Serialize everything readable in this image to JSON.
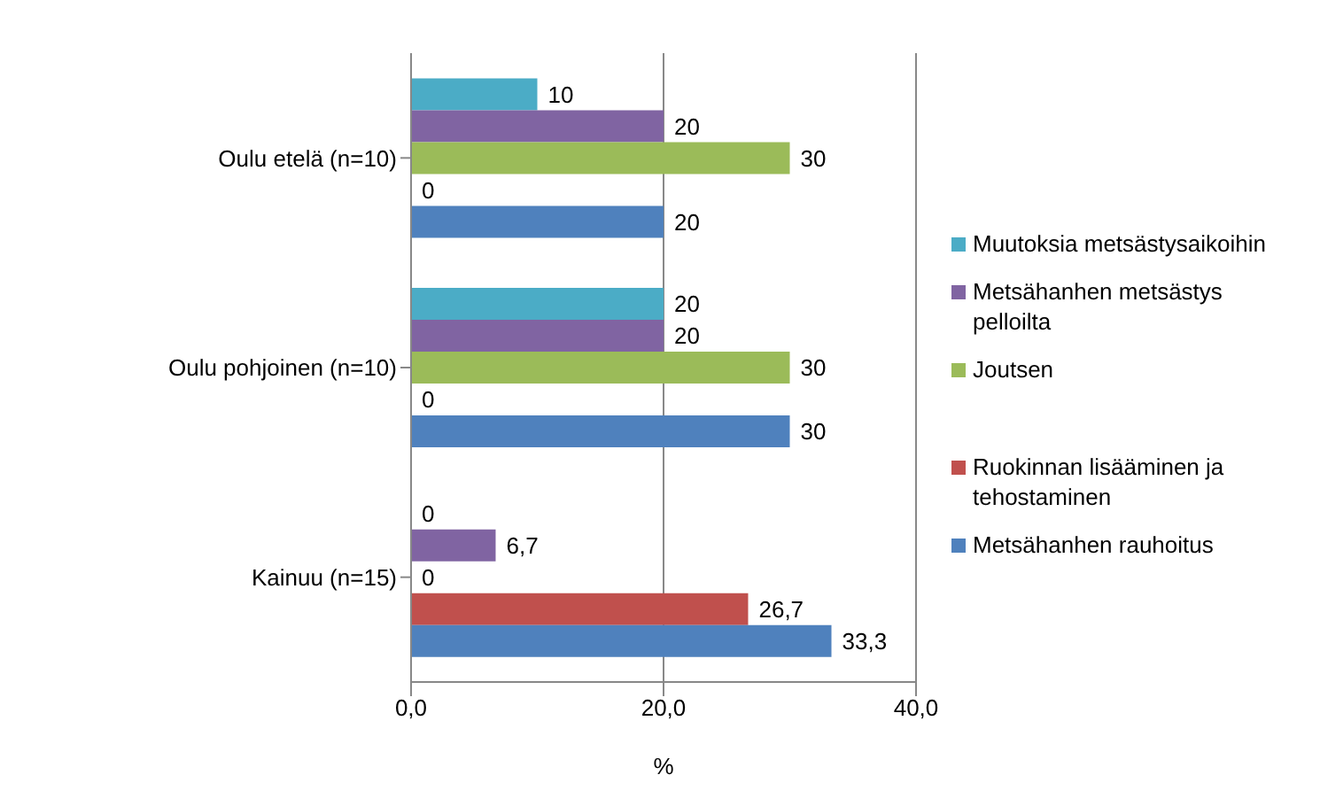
{
  "chart_data": {
    "type": "bar",
    "orientation": "horizontal",
    "xlabel": "%",
    "categories": [
      "Oulu etelä (n=10)",
      "Oulu pohjoinen (n=10)",
      "Kainuu (n=15)"
    ],
    "series": [
      {
        "name": "Muutoksia metsästysaikoihin",
        "color": "#4bacc6",
        "values": [
          10,
          20,
          0
        ],
        "value_labels": [
          "10",
          "20",
          "0"
        ]
      },
      {
        "name": "Metsähanhen metsästys pelloilta",
        "color": "#8064a2",
        "values": [
          20,
          20,
          6.7
        ],
        "value_labels": [
          "20",
          "20",
          "6,7"
        ]
      },
      {
        "name": "Joutsen",
        "color": "#9bbb59",
        "values": [
          30,
          30,
          0
        ],
        "value_labels": [
          "30",
          "30",
          "0"
        ]
      },
      {
        "name": "Ruokinnan lisääminen ja tehostaminen",
        "color": "#c0504d",
        "values": [
          0,
          0,
          26.7
        ],
        "value_labels": [
          "0",
          "0",
          "26,7"
        ]
      },
      {
        "name": "Metsähanhen rauhoitus",
        "color": "#4f81bd",
        "values": [
          20,
          30,
          33.3
        ],
        "value_labels": [
          "20",
          "30",
          "33,3"
        ]
      }
    ],
    "xlim": [
      0,
      40
    ],
    "xticks": [
      {
        "value": 0,
        "label": "0,0"
      },
      {
        "value": 20,
        "label": "20,0"
      },
      {
        "value": 40,
        "label": "40,0"
      }
    ],
    "grid": "x",
    "legend": "right"
  }
}
